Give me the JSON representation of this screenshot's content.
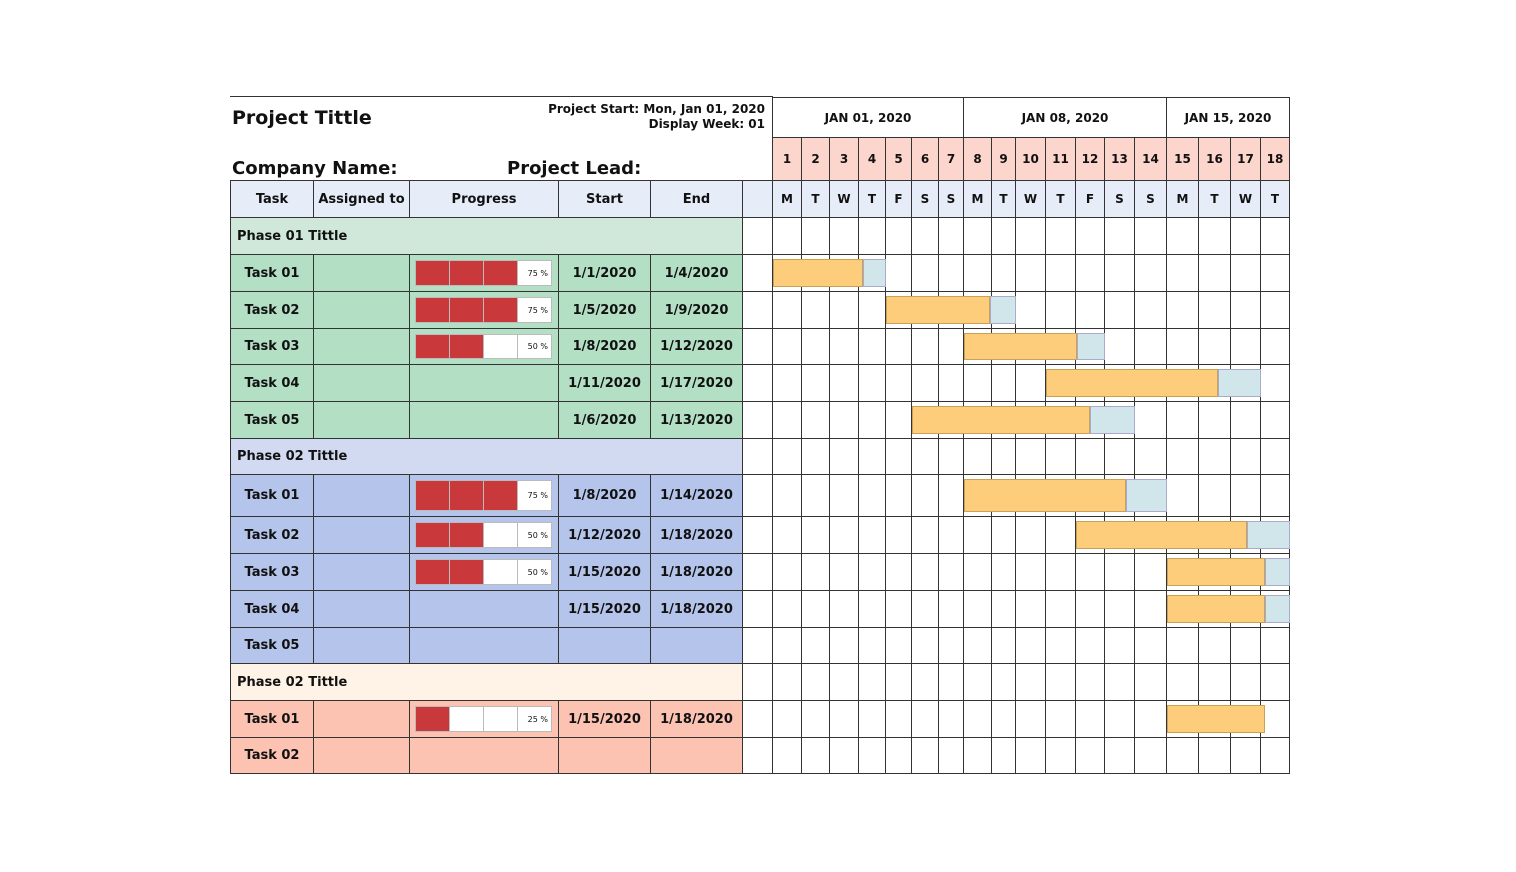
{
  "header": {
    "title": "Project Tittle",
    "project_start": "Project Start: Mon, Jan 01, 2020",
    "display_week": "Display Week: 01",
    "company": "Company Name:",
    "lead": "Project Lead:"
  },
  "columns": [
    "Task",
    "Assigned to",
    "Progress",
    "Start",
    "End"
  ],
  "weeks": [
    "JAN 01, 2020",
    "JAN 08, 2020",
    "JAN 15, 2020"
  ],
  "days": [
    1,
    2,
    3,
    4,
    5,
    6,
    7,
    8,
    9,
    10,
    11,
    12,
    13,
    14,
    15,
    16,
    17,
    18
  ],
  "weekdays": [
    "M",
    "T",
    "W",
    "T",
    "F",
    "S",
    "S",
    "M",
    "T",
    "W",
    "T",
    "F",
    "S",
    "S",
    "M",
    "T",
    "W",
    "T"
  ],
  "phases": [
    {
      "title": "Phase 01 Tittle",
      "color": "#cfe8d9",
      "task_color": "#b3dfc4",
      "tasks": [
        {
          "task": "Task 01",
          "progress": 75,
          "progress_label": "75 %",
          "start": "1/1/2020",
          "end": "1/4/2020"
        },
        {
          "task": "Task 02",
          "progress": 75,
          "progress_label": "75 %",
          "start": "1/5/2020",
          "end": "1/9/2020"
        },
        {
          "task": "Task 03",
          "progress": 50,
          "progress_label": "50 %",
          "start": "1/8/2020",
          "end": "1/12/2020"
        },
        {
          "task": "Task 04",
          "start": "1/11/2020",
          "end": "1/17/2020"
        },
        {
          "task": "Task 05",
          "start": "1/6/2020",
          "end": "1/13/2020"
        }
      ]
    },
    {
      "title": "Phase 02 Tittle",
      "color": "#d2daf2",
      "task_color": "#b4c4ea",
      "tasks": [
        {
          "task": "Task 01",
          "progress": 75,
          "progress_label": "75 %",
          "start": "1/8/2020",
          "end": "1/14/2020"
        },
        {
          "task": "Task 02",
          "progress": 50,
          "progress_label": "50 %",
          "start": "1/12/2020",
          "end": "1/18/2020"
        },
        {
          "task": "Task 03",
          "progress": 50,
          "progress_label": "50 %",
          "start": "1/15/2020",
          "end": "1/18/2020"
        },
        {
          "task": "Task 04",
          "start": "1/15/2020",
          "end": "1/18/2020"
        },
        {
          "task": "Task 05"
        }
      ]
    },
    {
      "title": "Phase 02 Tittle",
      "color": "#fef3e6",
      "task_color": "#fcc3b3",
      "tasks": [
        {
          "task": "Task 01",
          "progress": 25,
          "progress_label": "25 %",
          "start": "1/15/2020",
          "end": "1/18/2020"
        },
        {
          "task": "Task 02"
        }
      ]
    }
  ]
}
